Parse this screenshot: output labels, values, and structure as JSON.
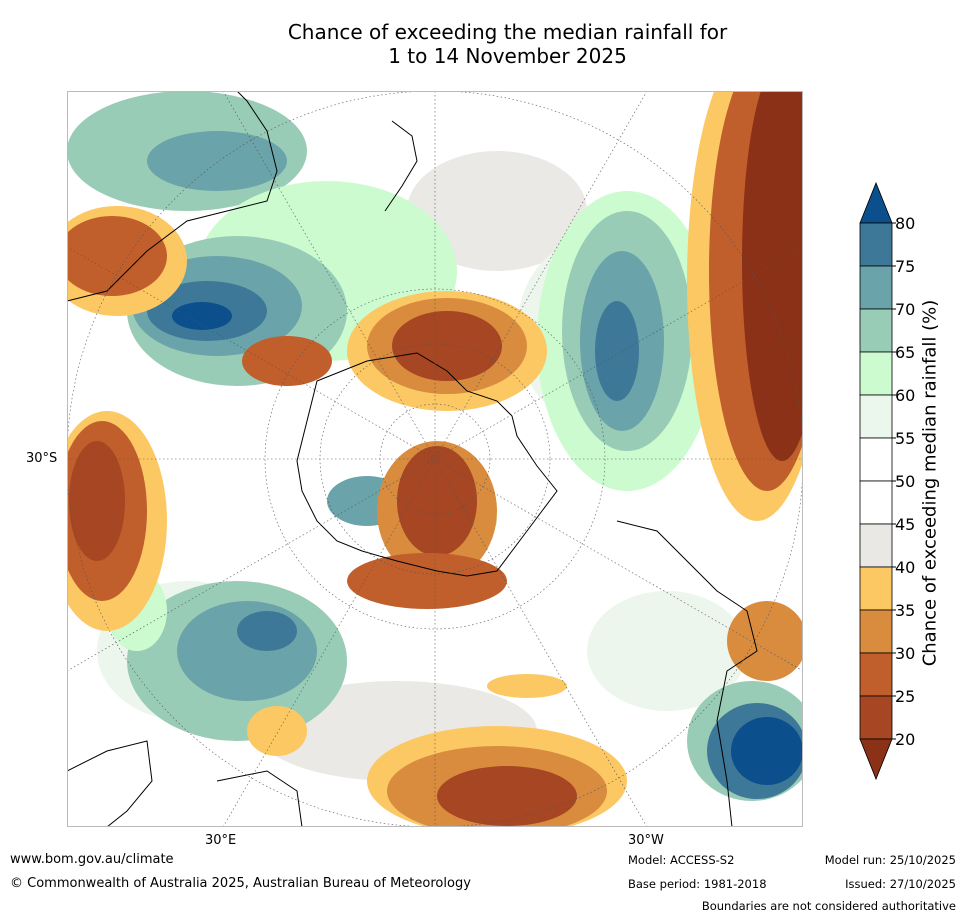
{
  "title": {
    "line1": "Chance of exceeding the median rainfall for",
    "line2": "1 to 14 November 2025"
  },
  "map": {
    "projection": "south polar stereographic",
    "lat_label": "30°S",
    "lon_labels": [
      "30°E",
      "30°W"
    ]
  },
  "legend": {
    "title": "Chance of exceeding median rainfall (%)",
    "ticks": [
      "80",
      "75",
      "70",
      "65",
      "60",
      "55",
      "50",
      "45",
      "40",
      "35",
      "30",
      "25",
      "20"
    ],
    "bins": [
      {
        "range": ">80",
        "color": "#0b4f8c"
      },
      {
        "range": "75-80",
        "color": "#3e7898"
      },
      {
        "range": "70-75",
        "color": "#6aa3aa"
      },
      {
        "range": "65-70",
        "color": "#99ccb6"
      },
      {
        "range": "60-65",
        "color": "#ccfbd0"
      },
      {
        "range": "55-60",
        "color": "#ebf6ec"
      },
      {
        "range": "50-55",
        "color": "#ffffff"
      },
      {
        "range": "45-50",
        "color": "#ffffff"
      },
      {
        "range": "40-45",
        "color": "#eae8e4"
      },
      {
        "range": "35-40",
        "color": "#fcc864"
      },
      {
        "range": "30-35",
        "color": "#d98c3e"
      },
      {
        "range": "25-30",
        "color": "#c05f2c"
      },
      {
        "range": "20-25",
        "color": "#a64623"
      },
      {
        "range": "<20",
        "color": "#8a3118"
      }
    ]
  },
  "footer": {
    "website": "www.bom.gov.au/climate",
    "copyright": "© Commonwealth of Australia 2025, Australian Bureau of Meteorology",
    "model": "Model: ACCESS-S2",
    "base_period": "Base period: 1981-2018",
    "model_run": "Model run: 25/10/2025",
    "issued": "Issued: 27/10/2025",
    "disclaimer": "Boundaries are not considered authoritative"
  }
}
